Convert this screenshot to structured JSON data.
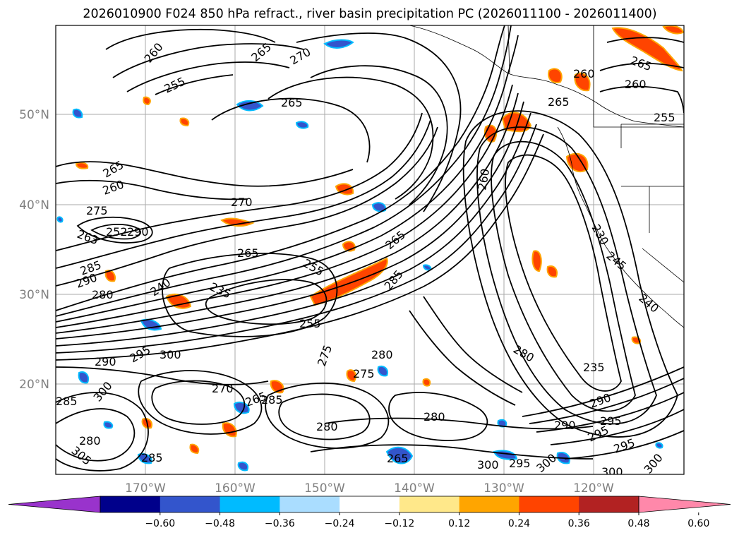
{
  "title": "2026010900 F024 850 hPa refract., river basin precipitation PC (2026011100 - 2026011400)",
  "lat_labels": [
    "50°N",
    "40°N",
    "30°N",
    "20°N"
  ],
  "lon_labels": [
    "170°W",
    "160°W",
    "150°W",
    "140°W",
    "130°W",
    "120°W"
  ],
  "colorbar": {
    "tick_labels": [
      "−0.60",
      "−0.48",
      "−0.36",
      "−0.24",
      "−0.12",
      "0.12",
      "0.24",
      "0.36",
      "0.48",
      "0.60"
    ],
    "colors": [
      "#9933cc",
      "#00008b",
      "#3355cc",
      "#00bbff",
      "#aaddff",
      "#ffffff",
      "#ffe88a",
      "#ffa500",
      "#ff4400",
      "#b22222",
      "#ff88aa"
    ]
  },
  "contour_labels": [
    "260",
    "265",
    "270",
    "255",
    "265",
    "265",
    "260",
    "265",
    "260",
    "255",
    "265",
    "260",
    "270",
    "275",
    "252",
    "290",
    "263",
    "265",
    "255",
    "285",
    "290",
    "280",
    "240",
    "235",
    "265",
    "285",
    "295",
    "300",
    "290",
    "300",
    "285",
    "270",
    "285",
    "275",
    "280",
    "275",
    "280",
    "280",
    "290",
    "295",
    "285",
    "305",
    "265",
    "280",
    "265",
    "300",
    "295",
    "300",
    "260",
    "235",
    "280",
    "290",
    "255",
    "295",
    "295",
    "300",
    "300",
    "230",
    "240",
    "245"
  ]
}
